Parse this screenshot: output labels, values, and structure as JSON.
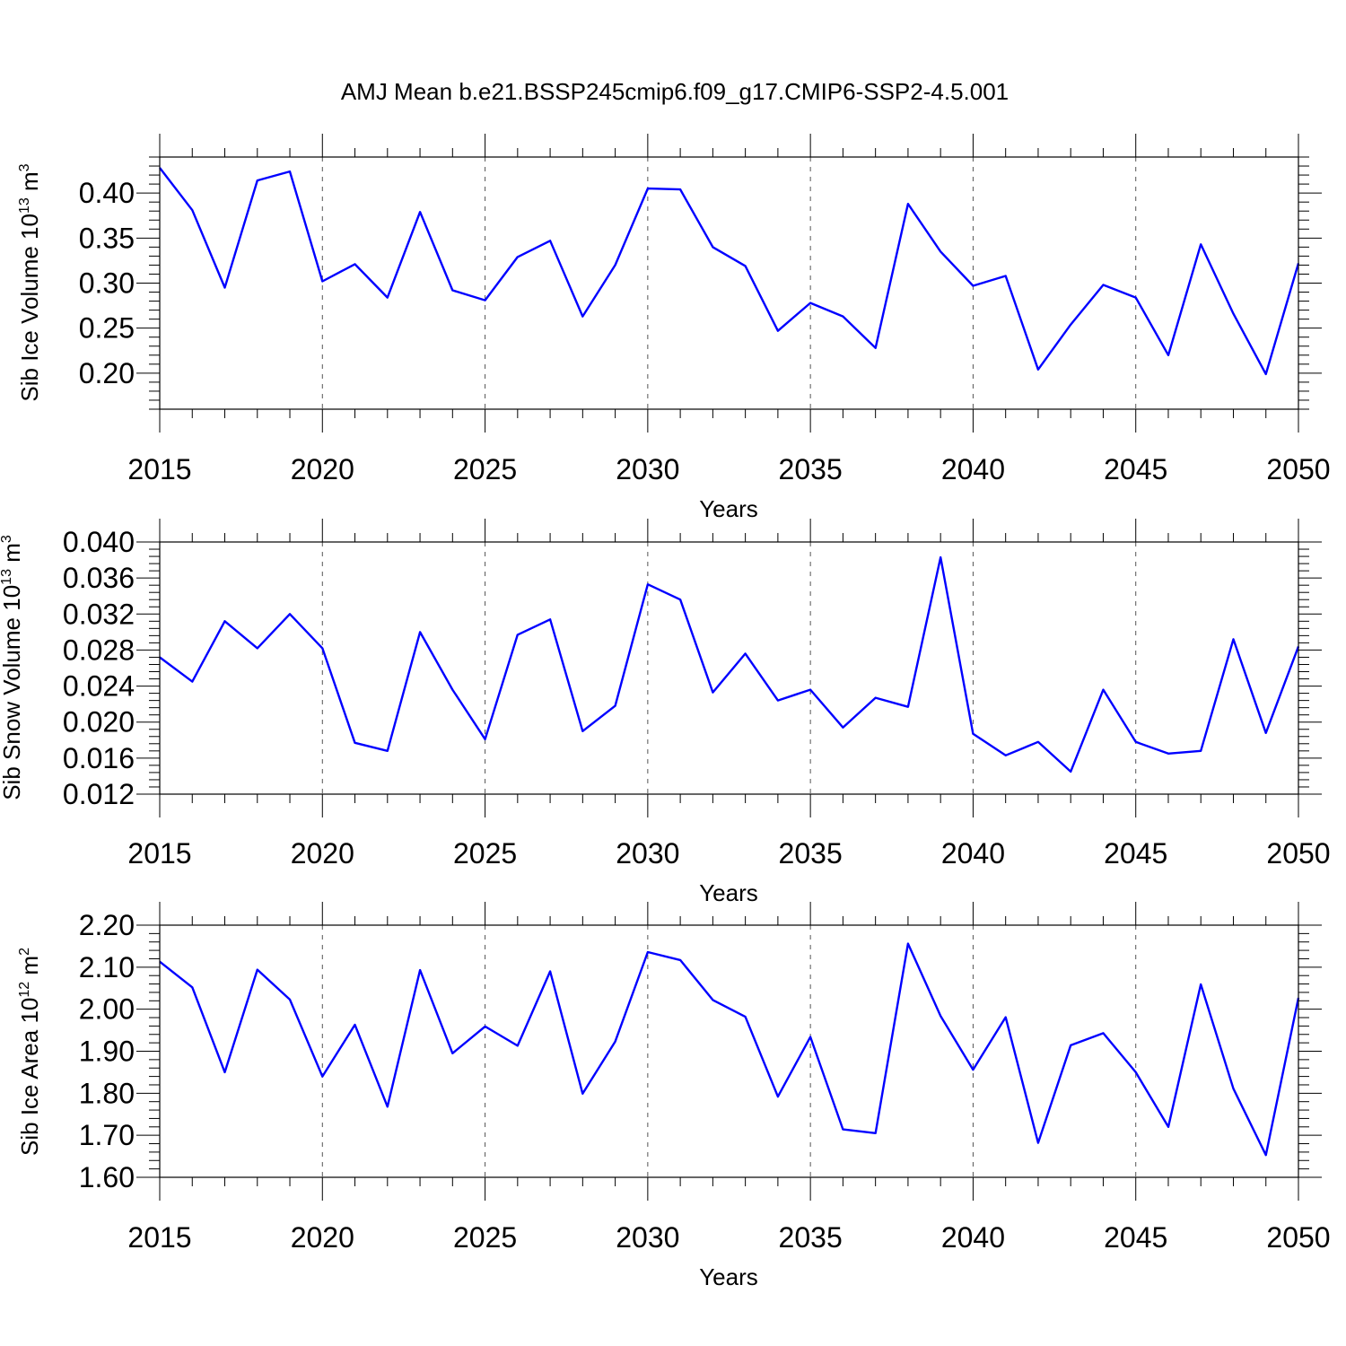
{
  "title": "AMJ Mean b.e21.BSSP245cmip6.f09_g17.CMIP6-SSP2-4.5.001",
  "colors": {
    "series": "#0000ff",
    "axis": "#000000",
    "grid": "#555555"
  },
  "chart_data": [
    {
      "type": "line",
      "ylabel": "Sib Ice Volume",
      "ylabel_unit_base": "10",
      "ylabel_unit_exp": "13",
      "ylabel_unit_m": "m",
      "ylabel_unit_m_exp": "3",
      "xlabel": "Years",
      "xlim": [
        2015,
        2050
      ],
      "ylim": [
        0.16,
        0.44
      ],
      "y_ticks": [
        0.2,
        0.25,
        0.3,
        0.35,
        0.4
      ],
      "y_tick_labels": [
        "0.20",
        "0.25",
        "0.30",
        "0.35",
        "0.40"
      ],
      "x_ticks": [
        2015,
        2020,
        2025,
        2030,
        2035,
        2040,
        2045,
        2050
      ],
      "x_tick_labels": [
        "2015",
        "2020",
        "2025",
        "2030",
        "2035",
        "2040",
        "2045",
        "2050"
      ],
      "x_grid": [
        2020,
        2025,
        2030,
        2035,
        2040,
        2045
      ],
      "series": [
        {
          "name": "Sib Ice Volume",
          "x": [
            2015,
            2016,
            2017,
            2018,
            2019,
            2020,
            2021,
            2022,
            2023,
            2024,
            2025,
            2026,
            2027,
            2028,
            2029,
            2030,
            2031,
            2032,
            2033,
            2034,
            2035,
            2036,
            2037,
            2038,
            2039,
            2040,
            2041,
            2042,
            2043,
            2044,
            2045,
            2046,
            2047,
            2048,
            2049,
            2050
          ],
          "values": [
            0.428,
            0.381,
            0.295,
            0.414,
            0.424,
            0.302,
            0.321,
            0.284,
            0.379,
            0.292,
            0.281,
            0.329,
            0.347,
            0.263,
            0.32,
            0.405,
            0.404,
            0.34,
            0.319,
            0.247,
            0.278,
            0.263,
            0.228,
            0.388,
            0.335,
            0.297,
            0.308,
            0.204,
            0.254,
            0.298,
            0.284,
            0.22,
            0.343,
            0.266,
            0.199,
            0.322
          ]
        }
      ]
    },
    {
      "type": "line",
      "ylabel": "Sib Snow Volume",
      "ylabel_unit_base": "10",
      "ylabel_unit_exp": "13",
      "ylabel_unit_m": "m",
      "ylabel_unit_m_exp": "3",
      "xlabel": "Years",
      "xlim": [
        2015,
        2050
      ],
      "ylim": [
        0.012,
        0.04
      ],
      "y_ticks": [
        0.012,
        0.016,
        0.02,
        0.024,
        0.028,
        0.032,
        0.036,
        0.04
      ],
      "y_tick_labels": [
        "0.012",
        "0.016",
        "0.020",
        "0.024",
        "0.028",
        "0.032",
        "0.036",
        "0.040"
      ],
      "x_ticks": [
        2015,
        2020,
        2025,
        2030,
        2035,
        2040,
        2045,
        2050
      ],
      "x_tick_labels": [
        "2015",
        "2020",
        "2025",
        "2030",
        "2035",
        "2040",
        "2045",
        "2050"
      ],
      "x_grid": [
        2020,
        2025,
        2030,
        2035,
        2040,
        2045
      ],
      "series": [
        {
          "name": "Sib Snow Volume",
          "x": [
            2015,
            2016,
            2017,
            2018,
            2019,
            2020,
            2021,
            2022,
            2023,
            2024,
            2025,
            2026,
            2027,
            2028,
            2029,
            2030,
            2031,
            2032,
            2033,
            2034,
            2035,
            2036,
            2037,
            2038,
            2039,
            2040,
            2041,
            2042,
            2043,
            2044,
            2045,
            2046,
            2047,
            2048,
            2049,
            2050
          ],
          "values": [
            0.0272,
            0.0245,
            0.0312,
            0.0282,
            0.032,
            0.0282,
            0.0177,
            0.0168,
            0.03,
            0.0236,
            0.0181,
            0.0297,
            0.0314,
            0.019,
            0.0218,
            0.0353,
            0.0336,
            0.0233,
            0.0276,
            0.0224,
            0.0236,
            0.0194,
            0.0227,
            0.0217,
            0.0383,
            0.0187,
            0.0163,
            0.0178,
            0.0145,
            0.0236,
            0.0178,
            0.0165,
            0.0168,
            0.0292,
            0.0188,
            0.0284
          ]
        }
      ]
    },
    {
      "type": "line",
      "ylabel": "Sib Ice Area",
      "ylabel_unit_base": "10",
      "ylabel_unit_exp": "12",
      "ylabel_unit_m": "m",
      "ylabel_unit_m_exp": "2",
      "xlabel": "Years",
      "xlim": [
        2015,
        2050
      ],
      "ylim": [
        1.6,
        2.2
      ],
      "y_ticks": [
        1.6,
        1.7,
        1.8,
        1.9,
        2.0,
        2.1,
        2.2
      ],
      "y_tick_labels": [
        "1.60",
        "1.70",
        "1.80",
        "1.90",
        "2.00",
        "2.10",
        "2.20"
      ],
      "x_ticks": [
        2015,
        2020,
        2025,
        2030,
        2035,
        2040,
        2045,
        2050
      ],
      "x_tick_labels": [
        "2015",
        "2020",
        "2025",
        "2030",
        "2035",
        "2040",
        "2045",
        "2050"
      ],
      "x_grid": [
        2020,
        2025,
        2030,
        2035,
        2040,
        2045
      ],
      "series": [
        {
          "name": "Sib Ice Area",
          "x": [
            2015,
            2016,
            2017,
            2018,
            2019,
            2020,
            2021,
            2022,
            2023,
            2024,
            2025,
            2026,
            2027,
            2028,
            2029,
            2030,
            2031,
            2032,
            2033,
            2034,
            2035,
            2036,
            2037,
            2038,
            2039,
            2040,
            2041,
            2042,
            2043,
            2044,
            2045,
            2046,
            2047,
            2048,
            2049,
            2050
          ],
          "values": [
            2.113,
            2.052,
            1.85,
            2.094,
            2.023,
            1.84,
            1.963,
            1.768,
            2.093,
            1.895,
            1.959,
            1.913,
            2.09,
            1.799,
            1.923,
            2.136,
            2.117,
            2.022,
            1.982,
            1.792,
            1.934,
            1.714,
            1.705,
            2.156,
            1.984,
            1.856,
            1.981,
            1.682,
            1.914,
            1.943,
            1.85,
            1.72,
            2.059,
            1.811,
            1.653,
            2.027
          ]
        }
      ]
    }
  ]
}
